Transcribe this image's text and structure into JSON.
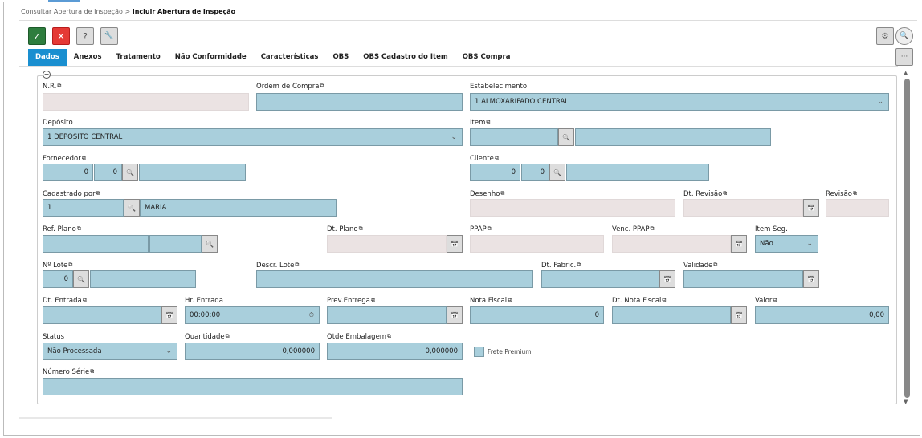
{
  "breadcrumb": {
    "parent": "Consultar Abertura de Inspeção",
    "separator": ">",
    "current": "Incluir Abertura de Inspeção"
  },
  "toolbar": {
    "confirm": "✓",
    "cancel": "✕",
    "help": "?",
    "tools": "🔧",
    "settings": "⚙",
    "search": "🔍",
    "more": "···"
  },
  "tabs": [
    "Dados",
    "Anexos",
    "Tratamento",
    "Não Conformidade",
    "Características",
    "OBS",
    "OBS Cadastro do Item",
    "OBS Compra"
  ],
  "icons": {
    "copy": "⧉",
    "search": "🔍",
    "calendar": "📅",
    "clock": "⏱",
    "chevron": "⌄",
    "collapse": "−"
  },
  "fields": {
    "nr": {
      "label": "N.R.",
      "values": [
        ""
      ]
    },
    "ordem_compra": {
      "label": "Ordem de Compra",
      "values": [
        ""
      ]
    },
    "estabelecimento": {
      "label": "Estabelecimento",
      "values": [
        "1 ALMOXARIFADO CENTRAL"
      ]
    },
    "deposito": {
      "label": "Depósito",
      "values": [
        "1 DEPOSITO CENTRAL"
      ]
    },
    "item": {
      "label": "Item",
      "values": [
        "",
        ""
      ]
    },
    "fornecedor": {
      "label": "Fornecedor",
      "values": [
        "0",
        "0",
        ""
      ]
    },
    "cliente": {
      "label": "Cliente",
      "values": [
        "0",
        "0",
        ""
      ]
    },
    "cadastrado_por": {
      "label": "Cadastrado por",
      "values": [
        "1",
        "MARIA"
      ]
    },
    "desenho": {
      "label": "Desenho",
      "values": [
        ""
      ]
    },
    "dt_revisao": {
      "label": "Dt. Revisão",
      "values": [
        ""
      ]
    },
    "revisao": {
      "label": "Revisão",
      "values": [
        ""
      ]
    },
    "ref_plano": {
      "label": "Ref. Plano",
      "values": [
        "",
        ""
      ]
    },
    "dt_plano": {
      "label": "Dt. Plano",
      "values": [
        ""
      ]
    },
    "ppap": {
      "label": "PPAP",
      "values": [
        ""
      ]
    },
    "venc_ppap": {
      "label": "Venc. PPAP",
      "values": [
        ""
      ]
    },
    "item_seg": {
      "label": "Item Seg.",
      "values": [
        "Não"
      ]
    },
    "n_lote": {
      "label": "Nº Lote",
      "values": [
        "0",
        ""
      ]
    },
    "descr_lote": {
      "label": "Descr. Lote",
      "values": [
        ""
      ]
    },
    "dt_fabric": {
      "label": "Dt. Fabric.",
      "values": [
        ""
      ]
    },
    "validade": {
      "label": "Validade",
      "values": [
        ""
      ]
    },
    "dt_entrada": {
      "label": "Dt. Entrada",
      "values": [
        ""
      ]
    },
    "hr_entrada": {
      "label": "Hr. Entrada",
      "values": [
        "00:00:00"
      ]
    },
    "prev_entrega": {
      "label": "Prev.Entrega",
      "values": [
        ""
      ]
    },
    "nota_fiscal": {
      "label": "Nota Fiscal",
      "values": [
        "0"
      ]
    },
    "dt_nota_fiscal": {
      "label": "Dt. Nota Fiscal",
      "values": [
        ""
      ]
    },
    "valor": {
      "label": "Valor",
      "values": [
        "0,00"
      ]
    },
    "status": {
      "label": "Status",
      "values": [
        "Não Processada"
      ]
    },
    "quantidade": {
      "label": "Quantidade",
      "values": [
        "0,000000"
      ]
    },
    "qtde_embalagem": {
      "label": "Qtde Embalagem",
      "values": [
        "0,000000"
      ]
    },
    "numero_serie": {
      "label": "Número Série",
      "values": [
        ""
      ]
    }
  },
  "frete_premium": {
    "label": "Frete Premium",
    "checked": false
  }
}
